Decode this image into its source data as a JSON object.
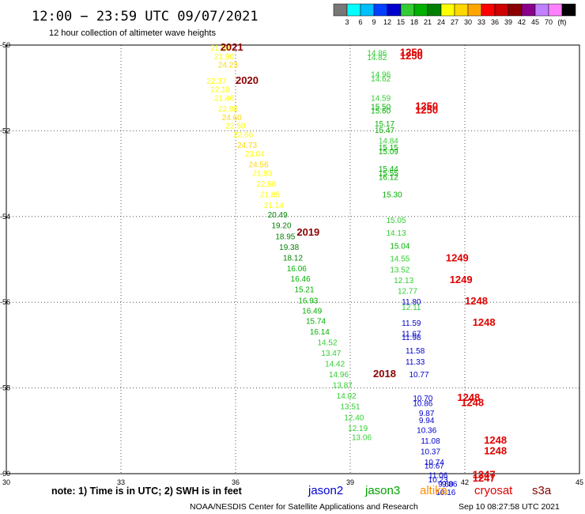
{
  "header": {
    "title": "12:00 − 23:59 UTC 09/07/2021",
    "subtitle": "12 hour collection of altimeter wave heights"
  },
  "colorbar": {
    "colors": [
      "#777777",
      "#00ffff",
      "#00bfff",
      "#0040ff",
      "#0000cd",
      "#32cd32",
      "#00b000",
      "#008000",
      "#ffff00",
      "#ffd700",
      "#ffa500",
      "#ff0000",
      "#cc0000",
      "#8b0000",
      "#8b008b",
      "#c080ff",
      "#ff80ff",
      "#000000"
    ],
    "labels": [
      "3",
      "6",
      "9",
      "12",
      "15",
      "18",
      "21",
      "24",
      "27",
      "30",
      "33",
      "36",
      "39",
      "42",
      "45",
      "70",
      "(ft)"
    ]
  },
  "note": "note:  1) Time is in UTC;  2) SWH is in feet",
  "legend": [
    {
      "label": "jason2",
      "color": "#0000cd"
    },
    {
      "label": "jason3",
      "color": "#00a000"
    },
    {
      "label": "altika",
      "color": "#ff8c00"
    },
    {
      "label": "cryosat",
      "color": "#e00000"
    },
    {
      "label": "s3a",
      "color": "#8b0000"
    }
  ],
  "footer": {
    "left": "NOAA/NESDIS Center for Satellite Applications and Research",
    "right": "Sep 10 08:27:58 UTC 2021"
  },
  "chart_data": {
    "type": "scatter",
    "xlim": [
      30,
      45
    ],
    "ylim": [
      -60,
      -50
    ],
    "xticks": [
      30,
      33,
      36,
      39,
      42,
      45
    ],
    "yticks": [
      -50,
      -52,
      -54,
      -56,
      -58,
      -60
    ],
    "grid": true,
    "points": [
      {
        "x": 35.6,
        "y": -50.13,
        "v": "21.08",
        "c": "#ffff00"
      },
      {
        "x": 35.7,
        "y": -50.33,
        "v": "21.90",
        "c": "#ffff00"
      },
      {
        "x": 35.8,
        "y": -50.53,
        "v": "24.23",
        "c": "#ffd700"
      },
      {
        "x": 35.5,
        "y": -50.9,
        "v": "22.37",
        "c": "#ffff00"
      },
      {
        "x": 35.6,
        "y": -51.1,
        "v": "22.18",
        "c": "#ffff00"
      },
      {
        "x": 35.7,
        "y": -51.3,
        "v": "21.46",
        "c": "#ffff00"
      },
      {
        "x": 35.8,
        "y": -51.55,
        "v": "22.80",
        "c": "#ffff00"
      },
      {
        "x": 35.9,
        "y": -51.75,
        "v": "24.60",
        "c": "#ffd700"
      },
      {
        "x": 36.0,
        "y": -51.95,
        "v": "22.50",
        "c": "#ffff00"
      },
      {
        "x": 36.2,
        "y": -52.15,
        "v": "22.66",
        "c": "#ffff00"
      },
      {
        "x": 36.3,
        "y": -52.4,
        "v": "24.73",
        "c": "#ffd700"
      },
      {
        "x": 36.5,
        "y": -52.6,
        "v": "23.04",
        "c": "#ffff00"
      },
      {
        "x": 36.6,
        "y": -52.85,
        "v": "24.56",
        "c": "#ffd700"
      },
      {
        "x": 36.7,
        "y": -53.05,
        "v": "21.93",
        "c": "#ffff00"
      },
      {
        "x": 36.8,
        "y": -53.3,
        "v": "22.68",
        "c": "#ffff00"
      },
      {
        "x": 36.9,
        "y": -53.55,
        "v": "21.85",
        "c": "#ffff00"
      },
      {
        "x": 37.0,
        "y": -53.8,
        "v": "21.14",
        "c": "#ffff00"
      },
      {
        "x": 37.1,
        "y": -54.02,
        "v": "20.49",
        "c": "#008000"
      },
      {
        "x": 37.2,
        "y": -54.27,
        "v": "19.20",
        "c": "#008000"
      },
      {
        "x": 37.3,
        "y": -54.53,
        "v": "18.95",
        "c": "#008000"
      },
      {
        "x": 37.4,
        "y": -54.78,
        "v": "19.38",
        "c": "#008000"
      },
      {
        "x": 37.5,
        "y": -55.03,
        "v": "18.12",
        "c": "#008000"
      },
      {
        "x": 37.6,
        "y": -55.28,
        "v": "16.06",
        "c": "#00b000"
      },
      {
        "x": 37.7,
        "y": -55.52,
        "v": "16.46",
        "c": "#00b000"
      },
      {
        "x": 37.8,
        "y": -55.77,
        "v": "15.21",
        "c": "#00b000"
      },
      {
        "x": 37.9,
        "y": -56.02,
        "v": "16.93",
        "c": "#00b000"
      },
      {
        "x": 38.0,
        "y": -56.26,
        "v": "16.49",
        "c": "#00b000"
      },
      {
        "x": 38.1,
        "y": -56.5,
        "v": "15.74",
        "c": "#00b000"
      },
      {
        "x": 38.2,
        "y": -56.75,
        "v": "16.14",
        "c": "#00b000"
      },
      {
        "x": 38.4,
        "y": -57.0,
        "v": "14.52",
        "c": "#32cd32"
      },
      {
        "x": 38.5,
        "y": -57.25,
        "v": "13.47",
        "c": "#32cd32"
      },
      {
        "x": 38.6,
        "y": -57.5,
        "v": "14.42",
        "c": "#32cd32"
      },
      {
        "x": 38.7,
        "y": -57.75,
        "v": "14.96",
        "c": "#32cd32"
      },
      {
        "x": 38.8,
        "y": -58.0,
        "v": "13.87",
        "c": "#32cd32"
      },
      {
        "x": 38.9,
        "y": -58.25,
        "v": "14.02",
        "c": "#32cd32"
      },
      {
        "x": 39.0,
        "y": -58.5,
        "v": "13.51",
        "c": "#32cd32"
      },
      {
        "x": 39.1,
        "y": -58.75,
        "v": "12.40",
        "c": "#32cd32"
      },
      {
        "x": 39.2,
        "y": -59.0,
        "v": "12.19",
        "c": "#32cd32"
      },
      {
        "x": 39.3,
        "y": -59.22,
        "v": "13.06",
        "c": "#32cd32"
      },
      {
        "x": 39.7,
        "y": -50.25,
        "v": "14.86",
        "c": "#32cd32"
      },
      {
        "x": 39.7,
        "y": -50.35,
        "v": "14.82",
        "c": "#32cd32"
      },
      {
        "x": 39.8,
        "y": -50.75,
        "v": "14.96",
        "c": "#32cd32"
      },
      {
        "x": 39.8,
        "y": -50.85,
        "v": "14.62",
        "c": "#32cd32"
      },
      {
        "x": 39.8,
        "y": -51.3,
        "v": "14.59",
        "c": "#32cd32"
      },
      {
        "x": 39.8,
        "y": -51.5,
        "v": "15.50",
        "c": "#00b000"
      },
      {
        "x": 39.8,
        "y": -51.6,
        "v": "15.60",
        "c": "#00b000"
      },
      {
        "x": 39.9,
        "y": -51.9,
        "v": "15.17",
        "c": "#00b000"
      },
      {
        "x": 39.9,
        "y": -52.05,
        "v": "15.47",
        "c": "#00b000"
      },
      {
        "x": 40.0,
        "y": -52.3,
        "v": "14.84",
        "c": "#32cd32"
      },
      {
        "x": 40.0,
        "y": -52.45,
        "v": "15.15",
        "c": "#00b000"
      },
      {
        "x": 40.0,
        "y": -52.55,
        "v": "15.09",
        "c": "#00b000"
      },
      {
        "x": 40.0,
        "y": -52.95,
        "v": "15.44",
        "c": "#00b000"
      },
      {
        "x": 40.0,
        "y": -53.05,
        "v": "15.55",
        "c": "#00b000"
      },
      {
        "x": 40.0,
        "y": -53.15,
        "v": "16.12",
        "c": "#00b000"
      },
      {
        "x": 40.1,
        "y": -53.55,
        "v": "15.30",
        "c": "#00b000"
      },
      {
        "x": 40.2,
        "y": -54.15,
        "v": "15.05",
        "c": "#32cd32"
      },
      {
        "x": 40.2,
        "y": -54.45,
        "v": "14.13",
        "c": "#32cd32"
      },
      {
        "x": 40.3,
        "y": -54.75,
        "v": "15.04",
        "c": "#00b000"
      },
      {
        "x": 40.3,
        "y": -55.05,
        "v": "14.55",
        "c": "#32cd32"
      },
      {
        "x": 40.3,
        "y": -55.3,
        "v": "13.52",
        "c": "#32cd32"
      },
      {
        "x": 40.4,
        "y": -55.55,
        "v": "12.13",
        "c": "#32cd32"
      },
      {
        "x": 40.5,
        "y": -55.8,
        "v": "12.77",
        "c": "#32cd32"
      },
      {
        "x": 40.6,
        "y": -56.05,
        "v": "11.80",
        "c": "#0000cd"
      },
      {
        "x": 40.6,
        "y": -56.18,
        "v": "12.11",
        "c": "#32cd32"
      },
      {
        "x": 40.6,
        "y": -56.55,
        "v": "11.59",
        "c": "#0000cd"
      },
      {
        "x": 40.6,
        "y": -56.8,
        "v": "11.67",
        "c": "#0000cd"
      },
      {
        "x": 40.6,
        "y": -56.88,
        "v": "11.98",
        "c": "#0000cd"
      },
      {
        "x": 40.7,
        "y": -57.2,
        "v": "11.58",
        "c": "#0000cd"
      },
      {
        "x": 40.7,
        "y": -57.45,
        "v": "11.33",
        "c": "#0000cd"
      },
      {
        "x": 40.8,
        "y": -57.75,
        "v": "10.77",
        "c": "#0000cd"
      },
      {
        "x": 40.9,
        "y": -58.3,
        "v": "10.70",
        "c": "#0000cd"
      },
      {
        "x": 40.9,
        "y": -58.42,
        "v": "10.86",
        "c": "#0000cd"
      },
      {
        "x": 41.0,
        "y": -58.65,
        "v": "9.87",
        "c": "#0000cd"
      },
      {
        "x": 41.0,
        "y": -58.82,
        "v": "9.94",
        "c": "#0000cd"
      },
      {
        "x": 41.0,
        "y": -59.05,
        "v": "10.36",
        "c": "#0000cd"
      },
      {
        "x": 41.1,
        "y": -59.3,
        "v": "11.08",
        "c": "#0000cd"
      },
      {
        "x": 41.1,
        "y": -59.55,
        "v": "10.37",
        "c": "#0000cd"
      },
      {
        "x": 41.2,
        "y": -59.8,
        "v": "10.74",
        "c": "#0000cd"
      },
      {
        "x": 41.2,
        "y": -59.88,
        "v": "10.67",
        "c": "#0000cd"
      },
      {
        "x": 41.3,
        "y": -60.1,
        "v": "11.06",
        "c": "#0000cd"
      },
      {
        "x": 41.3,
        "y": -60.2,
        "v": "10.23",
        "c": "#0000cd"
      },
      {
        "x": 41.5,
        "y": -60.3,
        "v": "9.80",
        "c": "#0000cd"
      },
      {
        "x": 41.6,
        "y": -60.3,
        "v": "9.86",
        "c": "#0000cd"
      },
      {
        "x": 41.5,
        "y": -60.5,
        "v": "10.16",
        "c": "#0000cd"
      }
    ],
    "passes": [
      {
        "x": 35.9,
        "y": -50.13,
        "t": "2021",
        "c": "#8b0000"
      },
      {
        "x": 36.3,
        "y": -50.9,
        "t": "2020",
        "c": "#8b0000"
      },
      {
        "x": 37.9,
        "y": -54.45,
        "t": "2019",
        "c": "#8b0000"
      },
      {
        "x": 39.9,
        "y": -57.75,
        "t": "2018",
        "c": "#8b0000"
      },
      {
        "x": 40.6,
        "y": -50.25,
        "t": "1250",
        "c": "#e00000"
      },
      {
        "x": 40.6,
        "y": -50.33,
        "t": "1250",
        "c": "#e00000"
      },
      {
        "x": 41.0,
        "y": -51.5,
        "t": "1250",
        "c": "#e00000"
      },
      {
        "x": 41.0,
        "y": -51.6,
        "t": "1250",
        "c": "#e00000"
      },
      {
        "x": 41.8,
        "y": -55.05,
        "t": "1249",
        "c": "#e00000"
      },
      {
        "x": 41.9,
        "y": -55.55,
        "t": "1249",
        "c": "#e00000"
      },
      {
        "x": 42.3,
        "y": -56.05,
        "t": "1248",
        "c": "#e00000"
      },
      {
        "x": 42.5,
        "y": -56.55,
        "t": "1248",
        "c": "#e00000"
      },
      {
        "x": 42.1,
        "y": -58.3,
        "t": "1248",
        "c": "#e00000"
      },
      {
        "x": 42.2,
        "y": -58.42,
        "t": "1248",
        "c": "#e00000"
      },
      {
        "x": 42.8,
        "y": -59.3,
        "t": "1248",
        "c": "#e00000"
      },
      {
        "x": 42.8,
        "y": -59.55,
        "t": "1248",
        "c": "#e00000"
      },
      {
        "x": 42.5,
        "y": -60.1,
        "t": "1247",
        "c": "#e00000"
      },
      {
        "x": 42.5,
        "y": -60.18,
        "t": "1247",
        "c": "#e00000"
      }
    ]
  }
}
